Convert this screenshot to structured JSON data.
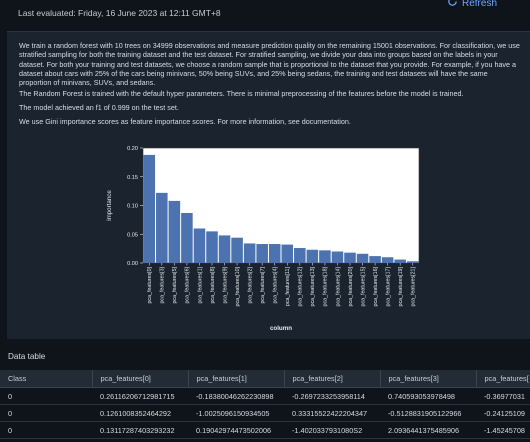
{
  "header": {
    "last_evaluated": "Last evaluated: Friday, 16 June 2023 at 12:11 GMT+8",
    "refresh_label": "Refresh"
  },
  "summary": {
    "p1": "We train a random forest with 10 trees on 34999 observations and measure prediction quality on the remaining 15001 observations. For classification, we use stratified sampling for both the training dataset and the test dataset. For stratified sampling, we divide your data into groups based on the labels in your dataset. For both your training and test datasets, we choose a random sample that is proportional to the dataset that you provide. For example, if you have a dataset about cars with 25% of the cars being minivans, 50% being SUVs, and 25% being sedans, the training and test datasets will have the same proportion of minivans, SUVs, and sedans.",
    "p2": "The Random Forest is trained with the default hyper parameters. There is minimal preprocessing of the features before the model is trained.",
    "p3": "The model achieved an f1 of 0.999 on the test set.",
    "p4": "We use Gini importance scores as feature importance scores. For more information, see documentation."
  },
  "chart_data": {
    "type": "bar",
    "xlabel": "column",
    "ylabel": "importance",
    "ylim": [
      0,
      0.2
    ],
    "yticks": [
      "0.00",
      "0.05",
      "0.10",
      "0.15",
      "0.20"
    ],
    "categories": [
      "pca_features[0]",
      "pca_features[3]",
      "pca_features[5]",
      "pca_features[6]",
      "pca_features[1]",
      "pca_features[8]",
      "pca_features[9]",
      "pca_features[10]",
      "pca_features[2]",
      "pca_features[7]",
      "pca_features[4]",
      "pca_features[11]",
      "pca_features[12]",
      "pca_features[13]",
      "pca_features[18]",
      "pca_features[14]",
      "pca_features[20]",
      "pca_features[15]",
      "pca_features[16]",
      "pca_features[17]",
      "pca_features[19]",
      "pca_features[21]"
    ],
    "values": [
      0.188,
      0.122,
      0.108,
      0.087,
      0.06,
      0.055,
      0.048,
      0.044,
      0.034,
      0.033,
      0.033,
      0.032,
      0.026,
      0.023,
      0.022,
      0.02,
      0.018,
      0.016,
      0.012,
      0.01,
      0.006,
      0.003
    ],
    "bar_color": "#4c72b0",
    "grid": false
  },
  "data_table": {
    "title": "Data table",
    "columns": [
      "Class",
      "pca_features[0]",
      "pca_features[1]",
      "pca_features[2]",
      "pca_features[3]",
      "pca_features["
    ],
    "rows": [
      [
        "0",
        "0.26116206712981715",
        "-0.18380046262230898",
        "-0.2697233253958114",
        "0.740593053978498",
        "-0.36977031"
      ],
      [
        "0",
        "0.1261008352464292",
        "-1.0025096150934505",
        "0.33315522422204347",
        "-0.5128831905122966",
        "-0.24125109"
      ],
      [
        "0",
        "0.13117287403293232",
        "0.19042974473502006",
        "-1.4020337931080S2",
        "2.0936441375485906",
        "-1.45245708"
      ],
      [
        "0",
        "0.4644259209877398",
        "-0.4632609137942454",
        "-0.2973428059372",
        "-0.5816830533293802",
        "0.82636914"
      ]
    ]
  }
}
